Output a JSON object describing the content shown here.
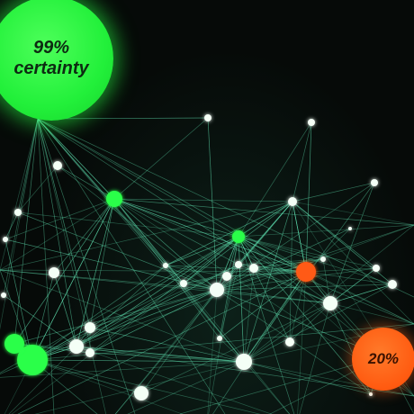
{
  "labels": {
    "high_percent": "99%",
    "high_word": "certainty",
    "low_percent": "20%"
  },
  "colors": {
    "background": "#060a08",
    "edge": "#5fe0b0",
    "node_white": "#f4fff6",
    "node_green": "#2cff4a",
    "node_orange": "#ff5a14",
    "bubble_green": "#22f03a",
    "bubble_orange": "#ff5a10"
  }
}
